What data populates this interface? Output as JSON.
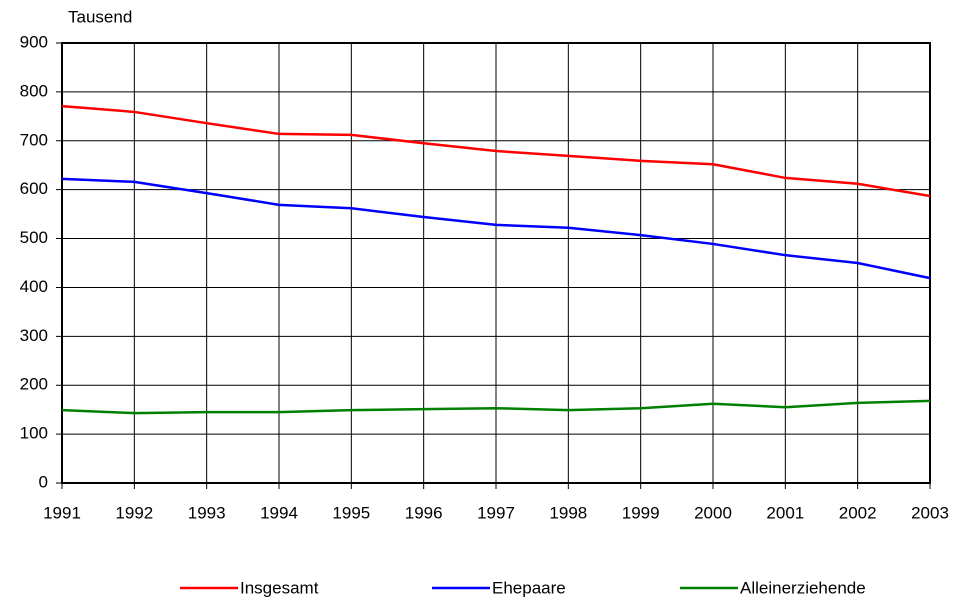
{
  "chart_data": {
    "type": "line",
    "y_axis_label": "Tausend",
    "x": [
      1991,
      1992,
      1993,
      1994,
      1995,
      1996,
      1997,
      1998,
      1999,
      2000,
      2001,
      2002,
      2003
    ],
    "xlim": [
      1991,
      2003
    ],
    "xticks": [
      1991,
      1992,
      1993,
      1994,
      1995,
      1996,
      1997,
      1998,
      1999,
      2000,
      2001,
      2002,
      2003
    ],
    "ylim": [
      0,
      900
    ],
    "yticks": [
      0,
      100,
      200,
      300,
      400,
      500,
      600,
      700,
      800,
      900
    ],
    "grid": true,
    "legend": "bottom",
    "series": [
      {
        "name": "Insgesamt",
        "color": "#ff0000",
        "values": [
          771,
          759,
          736,
          714,
          712,
          695,
          679,
          669,
          659,
          652,
          624,
          612,
          587
        ]
      },
      {
        "name": "Ehepaare",
        "color": "#0000ff",
        "values": [
          622,
          616,
          593,
          569,
          562,
          544,
          528,
          522,
          507,
          489,
          466,
          450,
          419
        ]
      },
      {
        "name": "Alleinerziehende",
        "color": "#008000",
        "values": [
          149,
          143,
          145,
          145,
          149,
          151,
          153,
          149,
          153,
          162,
          155,
          164,
          168
        ]
      }
    ]
  }
}
